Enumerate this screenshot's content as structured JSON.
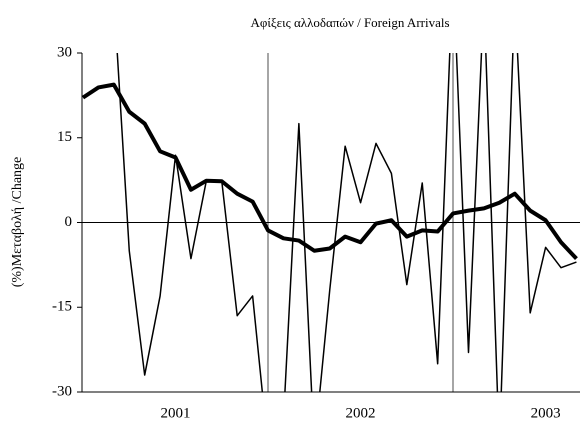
{
  "chart_data": {
    "type": "line",
    "title": "Αφίξεις αλλοδαπών  / Foreign Arrivals",
    "y_label": "(%)Μεταβολή /Change",
    "categories": [
      null,
      null,
      null,
      null,
      null,
      null,
      "2001",
      null,
      null,
      null,
      null,
      null,
      null,
      null,
      null,
      null,
      null,
      null,
      "2002",
      null,
      null,
      null,
      null,
      null,
      null,
      null,
      null,
      null,
      null,
      null,
      "2003",
      null,
      null
    ],
    "series": [
      {
        "color": "#000000",
        "width": 1.5,
        "values": [
          null,
          null,
          40,
          -5,
          -27,
          -13,
          11.9,
          -6.4,
          7.4,
          7.3,
          -16.5,
          -13,
          -40,
          -35,
          17.5,
          -40,
          -12,
          13.5,
          3.5,
          14,
          8.7,
          -11,
          7,
          -25,
          45,
          -23,
          40,
          -40,
          40,
          -16,
          -4.4,
          -8,
          -7
        ]
      },
      {
        "color": "#000000",
        "width": 4,
        "values": [
          22.1,
          23.9,
          24.4,
          19.6,
          17.5,
          12.6,
          11.5,
          5.8,
          7.4,
          7.3,
          5.1,
          3.7,
          -1.4,
          -2.8,
          -3.2,
          -5,
          -4.6,
          -2.5,
          -3.5,
          -0.2,
          0.4,
          -2.5,
          -1.4,
          -1.6,
          1.6,
          2.1,
          2.5,
          3.5,
          5.1,
          2.1,
          0.4,
          -3.5,
          -6.4
        ]
      }
    ],
    "ylim": [
      -30,
      30
    ],
    "yticks": [
      -30,
      -15,
      0,
      15,
      30
    ]
  }
}
